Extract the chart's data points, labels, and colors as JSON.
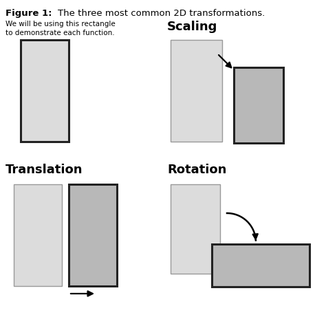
{
  "title_bold": "Figure 1:",
  "title_rest": "    The three most common 2D transformations.",
  "subtitle": "We will be using this rectangle\nto demonstrate each function.",
  "section_scaling": "Scaling",
  "section_translation": "Translation",
  "section_rotation": "Rotation",
  "bg_color": "#ffffff",
  "rect_light_fill": "#dcdcdc",
  "rect_dark_fill": "#b8b8b8",
  "rect_light_edge": "#999999",
  "rect_dark_edge": "#222222",
  "fig_width": 4.74,
  "fig_height": 4.61,
  "lw_light": 1.0,
  "lw_dark": 2.2
}
